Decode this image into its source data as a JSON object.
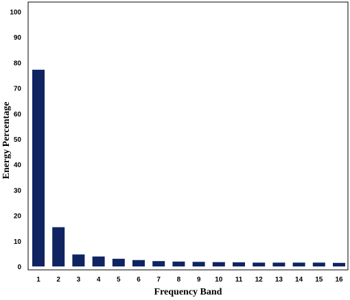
{
  "chart_data": {
    "type": "bar",
    "title": "",
    "xlabel": "Frequency Band",
    "ylabel": "Energy Percentage",
    "categories": [
      "1",
      "2",
      "3",
      "4",
      "5",
      "6",
      "7",
      "8",
      "9",
      "10",
      "11",
      "12",
      "13",
      "14",
      "15",
      "16"
    ],
    "values": [
      77.2,
      15.4,
      4.7,
      3.9,
      3.0,
      2.5,
      2.1,
      1.9,
      1.8,
      1.7,
      1.6,
      1.5,
      1.5,
      1.5,
      1.5,
      1.4
    ],
    "ylim": [
      0,
      100
    ],
    "yticks": [
      "0",
      "10",
      "20",
      "30",
      "40",
      "50",
      "60",
      "70",
      "80",
      "90",
      "100"
    ],
    "grid": false,
    "bar_color": "#0f2461"
  }
}
